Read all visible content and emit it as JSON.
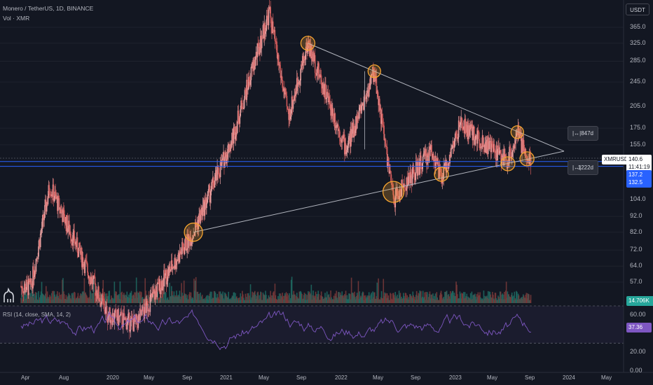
{
  "header": {
    "symbol_line": "Monero / TetherUS, 1D, BINANCE",
    "volume_line": "Vol · XMR",
    "currency": "USDT"
  },
  "price_axis": {
    "ticks": [
      "365.0",
      "325.0",
      "285.0",
      "245.0",
      "205.0",
      "175.0",
      "155.0",
      "104.0",
      "92.0",
      "82.0",
      "72.0",
      "64.0",
      "57.0"
    ],
    "tick_values": [
      365,
      325,
      285,
      245,
      205,
      175,
      155,
      104,
      92,
      82,
      72,
      64,
      57
    ]
  },
  "price_tags": {
    "symbol": "XMRUSDT",
    "last_price": "140.6",
    "countdown": "11:41:19",
    "level_1": "137.2",
    "level_2": "132.5",
    "volume": "14.706K"
  },
  "measure_labels": {
    "upper": "847d",
    "lower": "1222d"
  },
  "rsi": {
    "label": "RSI (14, close, SMA, 14, 2)",
    "ticks": [
      "60.00",
      "20.00",
      "0.00"
    ],
    "value": "37.36",
    "line_color": "#7e57c2"
  },
  "time_axis": [
    "Apr",
    "Aug",
    "2020",
    "May",
    "Sep",
    "2021",
    "May",
    "Sep",
    "2022",
    "May",
    "Sep",
    "2023",
    "May",
    "Sep",
    "2024",
    "May"
  ],
  "colors": {
    "background": "#131722",
    "up": "#e8a0a0",
    "down": "#d05a5a",
    "volume": "#26a69a",
    "trendline": "#b2b5be",
    "highlight": "#f7a530",
    "hline": "#2962ff"
  },
  "chart_data": {
    "type": "candlestick",
    "symbol": "XMRUSDT",
    "exchange": "BINANCE",
    "interval": "1D",
    "y_scale": "log",
    "ylim": [
      52,
      420
    ],
    "swing_points": [
      {
        "date": "2019-04",
        "price": 55
      },
      {
        "date": "2019-06",
        "price": 115
      },
      {
        "date": "2019-12",
        "price": 45
      },
      {
        "date": "2020-03",
        "price": 42
      },
      {
        "date": "2020-09",
        "price": 82
      },
      {
        "date": "2021-01",
        "price": 160
      },
      {
        "date": "2021-05",
        "price": 410
      },
      {
        "date": "2021-07",
        "price": 190
      },
      {
        "date": "2021-09",
        "price": 325
      },
      {
        "date": "2022-01",
        "price": 150
      },
      {
        "date": "2022-04",
        "price": 265
      },
      {
        "date": "2022-06",
        "price": 104
      },
      {
        "date": "2022-10",
        "price": 150
      },
      {
        "date": "2022-11",
        "price": 120
      },
      {
        "date": "2023-01",
        "price": 180
      },
      {
        "date": "2023-06",
        "price": 138
      },
      {
        "date": "2023-07",
        "price": 170
      },
      {
        "date": "2023-08",
        "price": 140
      }
    ],
    "last_price": 140.6,
    "horizontal_levels": [
      137.2,
      132.5
    ],
    "triangle": {
      "upper_line": [
        [
          "2021-09",
          325
        ],
        [
          "2023-12",
          148
        ]
      ],
      "lower_line": [
        [
          "2020-09",
          82
        ],
        [
          "2023-12",
          148
        ]
      ]
    },
    "measurements": [
      "847d",
      "1222d"
    ],
    "rsi": {
      "period": 14,
      "source": "close",
      "smoothing": "SMA",
      "smoothing_length": 14,
      "last": 37.36,
      "ylim": [
        0,
        70
      ]
    },
    "volume_last": "14.706K"
  }
}
